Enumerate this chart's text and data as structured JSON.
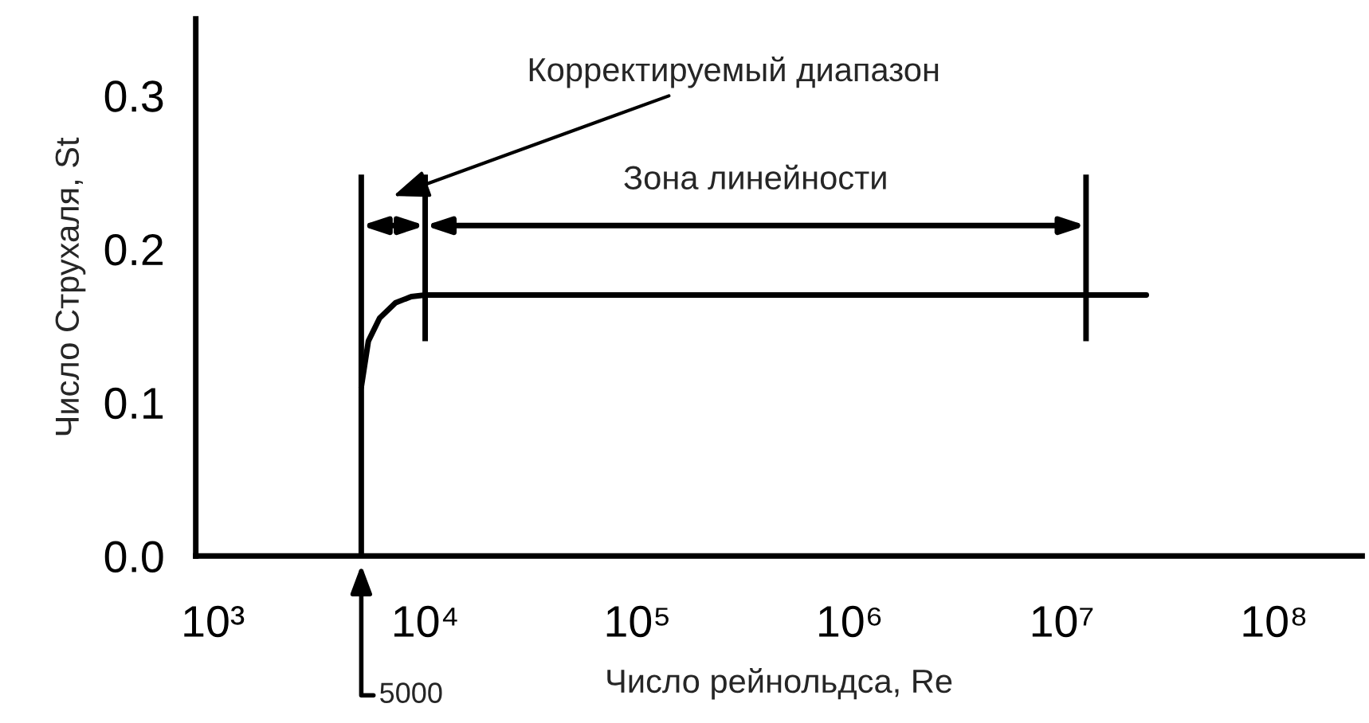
{
  "chart_data": {
    "type": "line",
    "xlabel": "Число рейнольдса, Re",
    "ylabel": "Число Струхаля, St",
    "log": "x",
    "x": [
      5000,
      5400,
      6100,
      7250,
      8600,
      10000,
      25000000
    ],
    "series": [
      {
        "color": "#000000",
        "values": [
          0.11,
          0.14,
          0.155,
          0.165,
          0.169,
          0.17,
          0.17
        ]
      }
    ],
    "xlim": [
      830,
      260000000
    ],
    "ylim": [
      0,
      0.35
    ],
    "xticks": [
      {
        "value": 1000,
        "label": "10³"
      },
      {
        "value": 5000,
        "label": null
      },
      {
        "value": 10000,
        "label": "10⁴"
      },
      {
        "value": 100000,
        "label": "10⁵"
      },
      {
        "value": 1000000,
        "label": "10⁶"
      },
      {
        "value": 10000000,
        "label": "10⁷"
      },
      {
        "value": 100000000,
        "label": "10⁸"
      }
    ],
    "yticks": [
      {
        "value": 0,
        "label": "0.0"
      },
      0.1,
      0.2,
      0.3
    ],
    "ref_lines": [
      {
        "axis": "x",
        "value": 5000,
        "color": "#000000"
      },
      {
        "axis": "x",
        "value": 10000,
        "color": "#000000"
      },
      {
        "axis": "x",
        "value": 13000000,
        "color": "#000000"
      }
    ],
    "annotations": [
      "Корректируемый диапазон",
      "Зона линейности",
      "5000"
    ],
    "grid": false,
    "legend": false,
    "line_style": "solid",
    "marker": "none"
  }
}
